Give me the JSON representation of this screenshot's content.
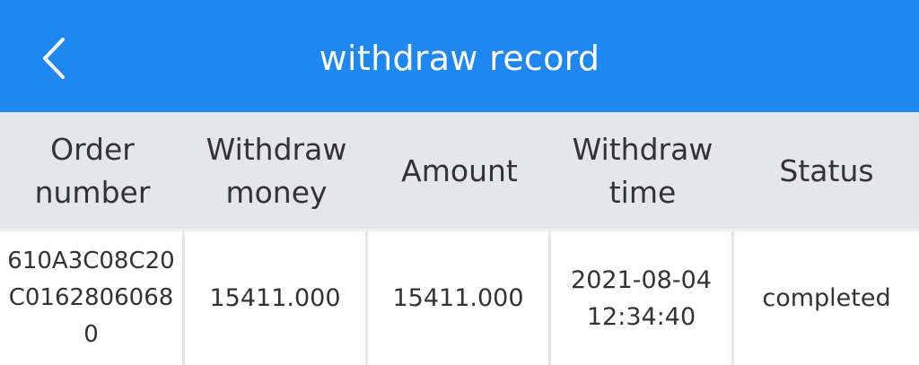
{
  "header": {
    "title": "withdraw record",
    "back_icon": "chevron-left-icon",
    "background": "#1e88f0"
  },
  "table": {
    "columns": [
      "Order\nnumber",
      "Withdraw\nmoney",
      "Amount",
      "Withdraw\ntime",
      "Status"
    ],
    "rows": [
      {
        "order_number": "610A3C08C20C01628060680",
        "withdraw_money": "15411.000",
        "amount": "15411.000",
        "withdraw_time": "2021-08-04\n12:34:40",
        "status": "completed"
      }
    ]
  }
}
